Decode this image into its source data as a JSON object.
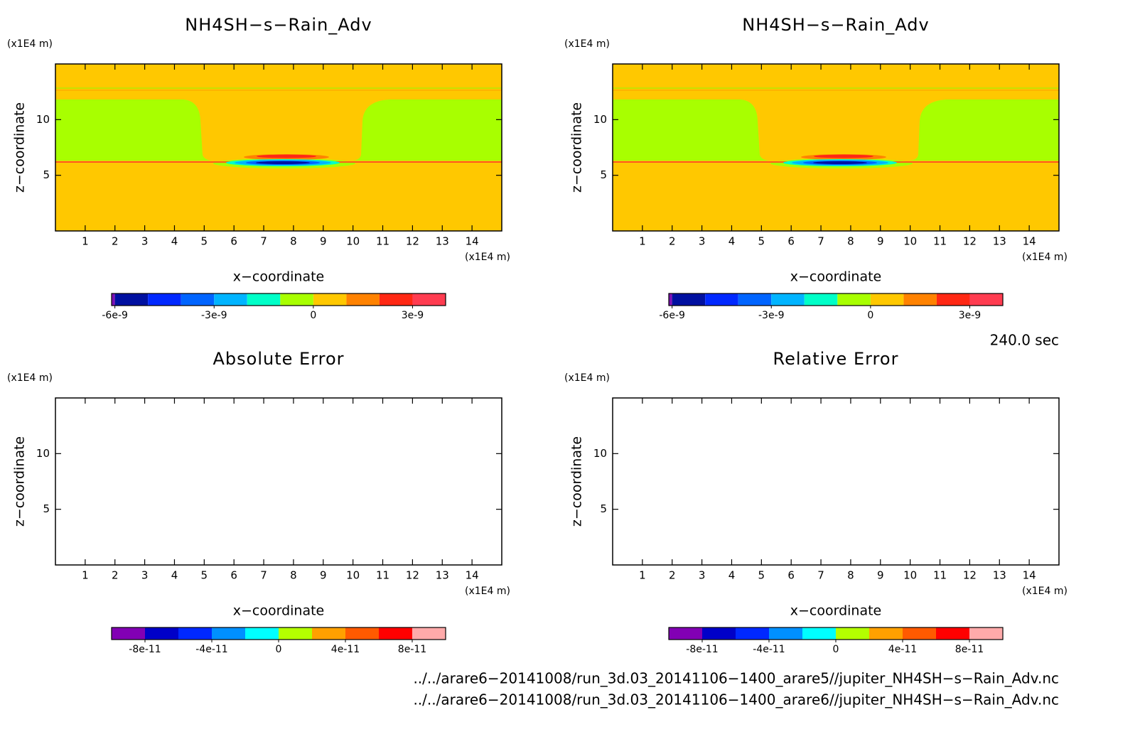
{
  "chart_data": [
    {
      "type": "contour",
      "title": "NH4SH−s−Rain_Adv",
      "filled": true,
      "xlabel": "x−coordinate",
      "ylabel": "z−coordinate",
      "xunit": "(x1E4 m)",
      "yunit": "(x1E4 m)",
      "xlim": [
        0,
        15
      ],
      "ylim": [
        0,
        15
      ],
      "xticks": [
        1,
        2,
        3,
        4,
        5,
        6,
        7,
        8,
        9,
        10,
        11,
        12,
        13,
        14
      ],
      "yticks": [
        5,
        10
      ],
      "colorbar": {
        "levels": [
          -6.1e-09,
          -6e-09,
          -5e-09,
          -4e-09,
          -3e-09,
          -2e-09,
          -1e-09,
          0,
          1e-09,
          2e-09,
          3e-09,
          4e-09
        ],
        "colors": [
          "#7d0fb4",
          "#0010a0",
          "#0028ff",
          "#0064ff",
          "#00b4ff",
          "#00ffc8",
          "#a8ff00",
          "#ffc800",
          "#ff8200",
          "#ff2814",
          "#ff3c50"
        ],
        "ticks": [
          -6e-09,
          -3e-09,
          0,
          3e-09
        ]
      }
    },
    {
      "type": "contour",
      "title": "NH4SH−s−Rain_Adv",
      "filled": true,
      "xlabel": "x−coordinate",
      "ylabel": "z−coordinate",
      "xunit": "(x1E4 m)",
      "yunit": "(x1E4 m)",
      "xlim": [
        0,
        15
      ],
      "ylim": [
        0,
        15
      ],
      "xticks": [
        1,
        2,
        3,
        4,
        5,
        6,
        7,
        8,
        9,
        10,
        11,
        12,
        13,
        14
      ],
      "yticks": [
        5,
        10
      ],
      "colorbar": {
        "levels": [
          -6.1e-09,
          -6e-09,
          -5e-09,
          -4e-09,
          -3e-09,
          -2e-09,
          -1e-09,
          0,
          1e-09,
          2e-09,
          3e-09,
          4e-09
        ],
        "colors": [
          "#7d0fb4",
          "#0010a0",
          "#0028ff",
          "#0064ff",
          "#00b4ff",
          "#00ffc8",
          "#a8ff00",
          "#ffc800",
          "#ff8200",
          "#ff2814",
          "#ff3c50"
        ],
        "ticks": [
          -6e-09,
          -3e-09,
          0,
          3e-09
        ]
      }
    },
    {
      "type": "contour",
      "title": "Absolute Error",
      "filled": false,
      "xlabel": "x−coordinate",
      "ylabel": "z−coordinate",
      "xunit": "(x1E4 m)",
      "yunit": "(x1E4 m)",
      "xlim": [
        0,
        15
      ],
      "ylim": [
        0,
        15
      ],
      "xticks": [
        1,
        2,
        3,
        4,
        5,
        6,
        7,
        8,
        9,
        10,
        11,
        12,
        13,
        14
      ],
      "yticks": [
        5,
        10
      ],
      "colorbar": {
        "levels": [
          -1e-10,
          -8e-11,
          -6e-11,
          -4e-11,
          -2e-11,
          0,
          2e-11,
          4e-11,
          6e-11,
          8e-11,
          1e-10
        ],
        "colors": [
          "#8200b4",
          "#0000c8",
          "#0028ff",
          "#0090ff",
          "#00ffff",
          "#b4ff00",
          "#ffa000",
          "#ff5a00",
          "#ff0000",
          "#ffaaaa"
        ],
        "ticks": [
          -8e-11,
          -4e-11,
          0,
          4e-11,
          8e-11
        ]
      }
    },
    {
      "type": "contour",
      "title": "Relative Error",
      "filled": false,
      "xlabel": "x−coordinate",
      "ylabel": "z−coordinate",
      "xunit": "(x1E4 m)",
      "yunit": "(x1E4 m)",
      "xlim": [
        0,
        15
      ],
      "ylim": [
        0,
        15
      ],
      "xticks": [
        1,
        2,
        3,
        4,
        5,
        6,
        7,
        8,
        9,
        10,
        11,
        12,
        13,
        14
      ],
      "yticks": [
        5,
        10
      ],
      "colorbar": {
        "levels": [
          -1e-10,
          -8e-11,
          -6e-11,
          -4e-11,
          -2e-11,
          0,
          2e-11,
          4e-11,
          6e-11,
          8e-11,
          1e-10
        ],
        "colors": [
          "#8200b4",
          "#0000c8",
          "#0028ff",
          "#0090ff",
          "#00ffff",
          "#b4ff00",
          "#ffa000",
          "#ff5a00",
          "#ff0000",
          "#ffaaaa"
        ],
        "ticks": [
          -8e-11,
          -4e-11,
          0,
          4e-11,
          8e-11
        ]
      }
    }
  ],
  "time_label": "240.0 sec",
  "files": [
    "../../arare6−20141008/run_3d.03_20141106−1400_arare5//jupiter_NH4SH−s−Rain_Adv.nc",
    "../../arare6−20141008/run_3d.03_20141106−1400_arare6//jupiter_NH4SH−s−Rain_Adv.nc"
  ]
}
